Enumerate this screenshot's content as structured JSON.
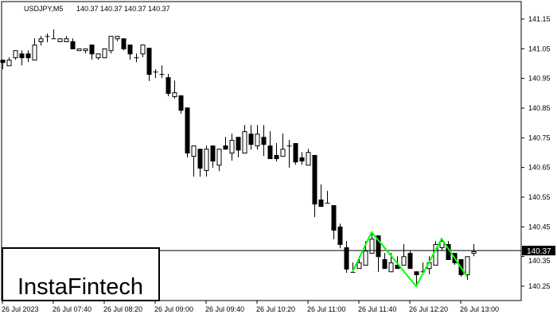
{
  "header": {
    "symbol": "USDJPY,M5",
    "ohlc": "140.37 140.37 140.37 140.37"
  },
  "logo": "InstaFintech",
  "current_price_label": "140.37",
  "colors": {
    "candle": "#000000",
    "pattern": "#00ff00",
    "background": "#ffffff",
    "price_line": "#000000"
  },
  "chart_data": {
    "type": "candlestick",
    "timeframe": "M5",
    "ylim": [
      140.21,
      141.18
    ],
    "grid": false,
    "yticks": [
      "141.15",
      "141.05",
      "140.95",
      "140.85",
      "140.75",
      "140.65",
      "140.55",
      "140.45",
      "140.35",
      "140.25"
    ],
    "xticks": [
      {
        "index": 0,
        "label": "26 Jul 2023"
      },
      {
        "index": 8,
        "label": "26 Jul 07:40"
      },
      {
        "index": 16,
        "label": "26 Jul 08:20"
      },
      {
        "index": 24,
        "label": "26 Jul 09:00"
      },
      {
        "index": 32,
        "label": "26 Jul 09:40"
      },
      {
        "index": 40,
        "label": "26 Jul 10:20"
      },
      {
        "index": 48,
        "label": "26 Jul 11:00"
      },
      {
        "index": 56,
        "label": "26 Jul 11:40"
      },
      {
        "index": 64,
        "label": "26 Jul 12:20"
      },
      {
        "index": 72,
        "label": "26 Jul 13:00"
      }
    ],
    "current_price": 140.37,
    "ohlc": [
      [
        141.013,
        141.013,
        140.981,
        141.005
      ],
      [
        140.994,
        141.021,
        140.994,
        141.013
      ],
      [
        141.021,
        141.045,
        141.013,
        141.045
      ],
      [
        141.034,
        141.045,
        140.994,
        141.021
      ],
      [
        141.034,
        141.045,
        141.005,
        141.021
      ],
      [
        141.013,
        141.085,
        141.013,
        141.064
      ],
      [
        141.075,
        141.093,
        141.061,
        141.085
      ],
      [
        141.093,
        141.101,
        141.072,
        141.093
      ],
      [
        141.085,
        141.115,
        141.085,
        141.085
      ],
      [
        141.075,
        141.085,
        141.075,
        141.085
      ],
      [
        141.075,
        141.093,
        141.075,
        141.085
      ],
      [
        141.075,
        141.085,
        141.051,
        141.051
      ],
      [
        141.045,
        141.051,
        141.045,
        141.051
      ],
      [
        141.045,
        141.051,
        141.034,
        141.051
      ],
      [
        141.064,
        141.064,
        141.013,
        141.034
      ],
      [
        141.021,
        141.034,
        141.013,
        141.034
      ],
      [
        141.021,
        141.051,
        141.021,
        141.051
      ],
      [
        141.045,
        141.093,
        141.034,
        141.093
      ],
      [
        141.085,
        141.093,
        141.075,
        141.093
      ],
      [
        141.085,
        141.085,
        141.045,
        141.051
      ],
      [
        141.064,
        141.064,
        141.013,
        141.034
      ],
      [
        141.021,
        141.034,
        141.005,
        141.021
      ],
      [
        141.034,
        141.064,
        141.021,
        141.064
      ],
      [
        141.053,
        141.053,
        140.941,
        140.965
      ],
      [
        140.973,
        140.981,
        140.951,
        140.973
      ],
      [
        140.965,
        140.994,
        140.951,
        140.965
      ],
      [
        140.954,
        140.965,
        140.89,
        140.901
      ],
      [
        140.89,
        140.943,
        140.882,
        140.903
      ],
      [
        140.893,
        140.893,
        140.831,
        140.844
      ],
      [
        140.852,
        140.852,
        140.684,
        140.7
      ],
      [
        140.689,
        140.724,
        140.619,
        140.724
      ],
      [
        140.713,
        140.713,
        140.619,
        140.649
      ],
      [
        140.641,
        140.724,
        140.619,
        140.713
      ],
      [
        140.724,
        140.724,
        140.649,
        140.673
      ],
      [
        140.659,
        140.713,
        140.638,
        140.713
      ],
      [
        140.724,
        140.753,
        140.713,
        140.713
      ],
      [
        140.7,
        140.764,
        140.673,
        140.743
      ],
      [
        140.753,
        140.753,
        140.684,
        140.71
      ],
      [
        140.7,
        140.793,
        140.7,
        140.772
      ],
      [
        140.764,
        140.793,
        140.71,
        140.729
      ],
      [
        140.724,
        140.793,
        140.71,
        140.764
      ],
      [
        140.753,
        140.793,
        140.689,
        140.729
      ],
      [
        140.724,
        140.772,
        140.681,
        140.681
      ],
      [
        140.692,
        140.732,
        140.67,
        140.681
      ],
      [
        140.689,
        140.764,
        140.689,
        140.713
      ],
      [
        140.724,
        140.743,
        140.649,
        140.724
      ],
      [
        140.732,
        140.732,
        140.659,
        140.67
      ],
      [
        140.684,
        140.702,
        140.659,
        140.673
      ],
      [
        140.659,
        140.713,
        140.659,
        140.702
      ],
      [
        140.692,
        140.692,
        140.483,
        140.528
      ],
      [
        140.542,
        140.593,
        140.52,
        140.52
      ],
      [
        140.531,
        140.571,
        140.531,
        140.531
      ],
      [
        140.523,
        140.523,
        140.408,
        140.44
      ],
      [
        140.451,
        140.461,
        140.378,
        140.392
      ],
      [
        140.381,
        140.402,
        140.295,
        140.309
      ],
      [
        140.298,
        140.33,
        140.295,
        140.298
      ],
      [
        140.311,
        140.351,
        140.311,
        140.33
      ],
      [
        140.322,
        140.402,
        140.322,
        140.37
      ],
      [
        140.362,
        140.432,
        140.362,
        140.41
      ],
      [
        140.421,
        140.421,
        140.298,
        140.351
      ],
      [
        140.341,
        140.362,
        140.311,
        140.311
      ],
      [
        140.3,
        140.362,
        140.3,
        140.33
      ],
      [
        140.322,
        140.351,
        140.311,
        140.311
      ],
      [
        140.322,
        140.392,
        140.322,
        140.351
      ],
      [
        140.362,
        140.37,
        140.311,
        140.311
      ],
      [
        140.3,
        140.3,
        140.25,
        140.29
      ],
      [
        140.3,
        140.33,
        140.29,
        140.3
      ],
      [
        140.311,
        140.351,
        140.29,
        140.33
      ],
      [
        140.322,
        140.402,
        140.322,
        140.392
      ],
      [
        140.381,
        140.41,
        140.37,
        140.402
      ],
      [
        140.392,
        140.402,
        140.341,
        140.341
      ],
      [
        140.362,
        140.362,
        140.322,
        140.33
      ],
      [
        140.341,
        140.341,
        140.282,
        140.29
      ],
      [
        140.29,
        140.351,
        140.271,
        140.351
      ],
      [
        140.362,
        140.392,
        140.351,
        140.368
      ]
    ],
    "pattern": {
      "points": [
        [
          55,
          140.298
        ],
        [
          58,
          140.432
        ],
        [
          65,
          140.25
        ],
        [
          69,
          140.41
        ],
        [
          73,
          140.282
        ]
      ]
    }
  }
}
